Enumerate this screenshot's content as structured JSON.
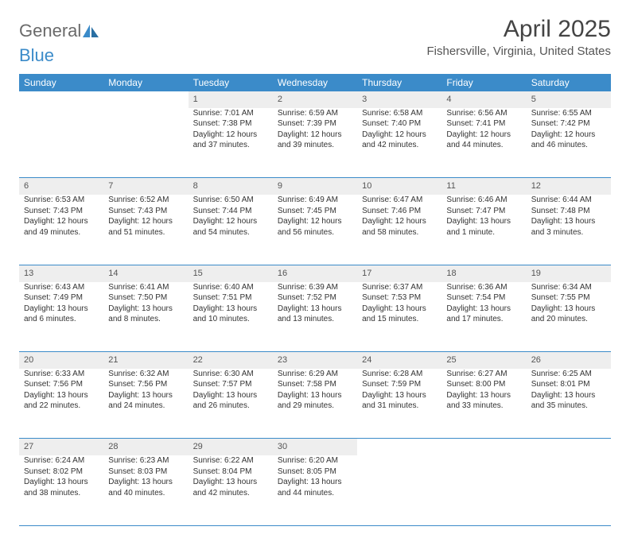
{
  "logo": {
    "part1": "General",
    "part2": "Blue"
  },
  "title": "April 2025",
  "location": "Fishersville, Virginia, United States",
  "colors": {
    "header_bg": "#3b8bc9",
    "header_text": "#ffffff",
    "daynum_bg": "#eeeeee",
    "border": "#3b8bc9",
    "page_bg": "#ffffff",
    "logo_gray": "#6a6a6a",
    "logo_blue": "#3b8bc9"
  },
  "columns": [
    "Sunday",
    "Monday",
    "Tuesday",
    "Wednesday",
    "Thursday",
    "Friday",
    "Saturday"
  ],
  "weeks": [
    [
      null,
      null,
      {
        "n": "1",
        "sr": "Sunrise: 7:01 AM",
        "ss": "Sunset: 7:38 PM",
        "dl": "Daylight: 12 hours and 37 minutes."
      },
      {
        "n": "2",
        "sr": "Sunrise: 6:59 AM",
        "ss": "Sunset: 7:39 PM",
        "dl": "Daylight: 12 hours and 39 minutes."
      },
      {
        "n": "3",
        "sr": "Sunrise: 6:58 AM",
        "ss": "Sunset: 7:40 PM",
        "dl": "Daylight: 12 hours and 42 minutes."
      },
      {
        "n": "4",
        "sr": "Sunrise: 6:56 AM",
        "ss": "Sunset: 7:41 PM",
        "dl": "Daylight: 12 hours and 44 minutes."
      },
      {
        "n": "5",
        "sr": "Sunrise: 6:55 AM",
        "ss": "Sunset: 7:42 PM",
        "dl": "Daylight: 12 hours and 46 minutes."
      }
    ],
    [
      {
        "n": "6",
        "sr": "Sunrise: 6:53 AM",
        "ss": "Sunset: 7:43 PM",
        "dl": "Daylight: 12 hours and 49 minutes."
      },
      {
        "n": "7",
        "sr": "Sunrise: 6:52 AM",
        "ss": "Sunset: 7:43 PM",
        "dl": "Daylight: 12 hours and 51 minutes."
      },
      {
        "n": "8",
        "sr": "Sunrise: 6:50 AM",
        "ss": "Sunset: 7:44 PM",
        "dl": "Daylight: 12 hours and 54 minutes."
      },
      {
        "n": "9",
        "sr": "Sunrise: 6:49 AM",
        "ss": "Sunset: 7:45 PM",
        "dl": "Daylight: 12 hours and 56 minutes."
      },
      {
        "n": "10",
        "sr": "Sunrise: 6:47 AM",
        "ss": "Sunset: 7:46 PM",
        "dl": "Daylight: 12 hours and 58 minutes."
      },
      {
        "n": "11",
        "sr": "Sunrise: 6:46 AM",
        "ss": "Sunset: 7:47 PM",
        "dl": "Daylight: 13 hours and 1 minute."
      },
      {
        "n": "12",
        "sr": "Sunrise: 6:44 AM",
        "ss": "Sunset: 7:48 PM",
        "dl": "Daylight: 13 hours and 3 minutes."
      }
    ],
    [
      {
        "n": "13",
        "sr": "Sunrise: 6:43 AM",
        "ss": "Sunset: 7:49 PM",
        "dl": "Daylight: 13 hours and 6 minutes."
      },
      {
        "n": "14",
        "sr": "Sunrise: 6:41 AM",
        "ss": "Sunset: 7:50 PM",
        "dl": "Daylight: 13 hours and 8 minutes."
      },
      {
        "n": "15",
        "sr": "Sunrise: 6:40 AM",
        "ss": "Sunset: 7:51 PM",
        "dl": "Daylight: 13 hours and 10 minutes."
      },
      {
        "n": "16",
        "sr": "Sunrise: 6:39 AM",
        "ss": "Sunset: 7:52 PM",
        "dl": "Daylight: 13 hours and 13 minutes."
      },
      {
        "n": "17",
        "sr": "Sunrise: 6:37 AM",
        "ss": "Sunset: 7:53 PM",
        "dl": "Daylight: 13 hours and 15 minutes."
      },
      {
        "n": "18",
        "sr": "Sunrise: 6:36 AM",
        "ss": "Sunset: 7:54 PM",
        "dl": "Daylight: 13 hours and 17 minutes."
      },
      {
        "n": "19",
        "sr": "Sunrise: 6:34 AM",
        "ss": "Sunset: 7:55 PM",
        "dl": "Daylight: 13 hours and 20 minutes."
      }
    ],
    [
      {
        "n": "20",
        "sr": "Sunrise: 6:33 AM",
        "ss": "Sunset: 7:56 PM",
        "dl": "Daylight: 13 hours and 22 minutes."
      },
      {
        "n": "21",
        "sr": "Sunrise: 6:32 AM",
        "ss": "Sunset: 7:56 PM",
        "dl": "Daylight: 13 hours and 24 minutes."
      },
      {
        "n": "22",
        "sr": "Sunrise: 6:30 AM",
        "ss": "Sunset: 7:57 PM",
        "dl": "Daylight: 13 hours and 26 minutes."
      },
      {
        "n": "23",
        "sr": "Sunrise: 6:29 AM",
        "ss": "Sunset: 7:58 PM",
        "dl": "Daylight: 13 hours and 29 minutes."
      },
      {
        "n": "24",
        "sr": "Sunrise: 6:28 AM",
        "ss": "Sunset: 7:59 PM",
        "dl": "Daylight: 13 hours and 31 minutes."
      },
      {
        "n": "25",
        "sr": "Sunrise: 6:27 AM",
        "ss": "Sunset: 8:00 PM",
        "dl": "Daylight: 13 hours and 33 minutes."
      },
      {
        "n": "26",
        "sr": "Sunrise: 6:25 AM",
        "ss": "Sunset: 8:01 PM",
        "dl": "Daylight: 13 hours and 35 minutes."
      }
    ],
    [
      {
        "n": "27",
        "sr": "Sunrise: 6:24 AM",
        "ss": "Sunset: 8:02 PM",
        "dl": "Daylight: 13 hours and 38 minutes."
      },
      {
        "n": "28",
        "sr": "Sunrise: 6:23 AM",
        "ss": "Sunset: 8:03 PM",
        "dl": "Daylight: 13 hours and 40 minutes."
      },
      {
        "n": "29",
        "sr": "Sunrise: 6:22 AM",
        "ss": "Sunset: 8:04 PM",
        "dl": "Daylight: 13 hours and 42 minutes."
      },
      {
        "n": "30",
        "sr": "Sunrise: 6:20 AM",
        "ss": "Sunset: 8:05 PM",
        "dl": "Daylight: 13 hours and 44 minutes."
      },
      null,
      null,
      null
    ]
  ]
}
